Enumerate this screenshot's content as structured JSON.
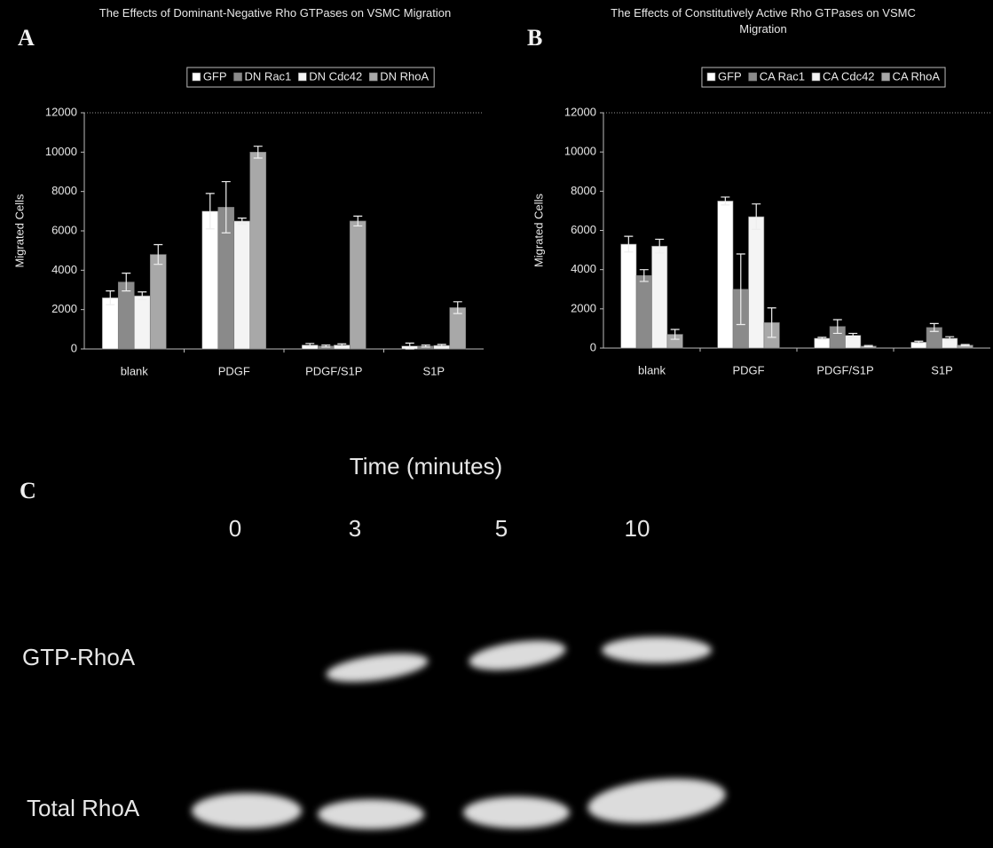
{
  "panel_labels": [
    "A",
    "B",
    "C"
  ],
  "chart_data": [
    {
      "type": "bar",
      "title": "The Effects of Dominant-Negative Rho GTPases on VSMC Migration",
      "y_label": "Migrated Cells",
      "categories": [
        "blank",
        "PDGF",
        "PDGF/S1P",
        "S1P"
      ],
      "series": [
        {
          "name": "GFP",
          "color": "#ffffff",
          "values": [
            2600,
            7000,
            200,
            150
          ],
          "errors": [
            350,
            900,
            80,
            150
          ]
        },
        {
          "name": "DN Rac1",
          "color": "#8a8a8a",
          "values": [
            3400,
            7200,
            150,
            150
          ],
          "errors": [
            450,
            1300,
            50,
            50
          ]
        },
        {
          "name": "DN Cdc42",
          "color": "#f4f4f4",
          "values": [
            2700,
            6500,
            200,
            180
          ],
          "errors": [
            200,
            150,
            60,
            50
          ]
        },
        {
          "name": "DN RhoA",
          "color": "#a8a8a8",
          "values": [
            4800,
            10000,
            6500,
            2100
          ],
          "errors": [
            500,
            300,
            250,
            300
          ]
        }
      ],
      "ylim": [
        0,
        12000
      ],
      "yticks": [
        0,
        2000,
        4000,
        6000,
        8000,
        10000,
        12000
      ],
      "grid": false,
      "legend": "top"
    },
    {
      "type": "bar",
      "title": "The Effects of Constitutively Active Rho GTPases on VSMC Migration",
      "y_label": "Migrated Cells",
      "categories": [
        "blank",
        "PDGF",
        "PDGF/S1P",
        "S1P"
      ],
      "series": [
        {
          "name": "GFP",
          "color": "#ffffff",
          "values": [
            5300,
            7500,
            500,
            300
          ],
          "errors": [
            400,
            200,
            50,
            50
          ]
        },
        {
          "name": "CA Rac1",
          "color": "#8a8a8a",
          "values": [
            3700,
            3000,
            1100,
            1050
          ],
          "errors": [
            300,
            1800,
            350,
            200
          ]
        },
        {
          "name": "CA Cdc42",
          "color": "#f4f4f4",
          "values": [
            5200,
            6700,
            650,
            500
          ],
          "errors": [
            350,
            650,
            100,
            80
          ]
        },
        {
          "name": "CA RhoA",
          "color": "#a8a8a8",
          "values": [
            700,
            1300,
            100,
            150
          ],
          "errors": [
            250,
            750,
            30,
            30
          ]
        }
      ],
      "ylim": [
        0,
        12000
      ],
      "yticks": [
        0,
        2000,
        4000,
        6000,
        8000,
        10000,
        12000
      ],
      "grid": false,
      "legend": "top"
    }
  ],
  "blot": {
    "title": "Time (minutes)",
    "times": [
      0,
      3,
      5,
      10
    ],
    "rows": [
      "GTP-RhoA",
      "Total RhoA"
    ]
  }
}
